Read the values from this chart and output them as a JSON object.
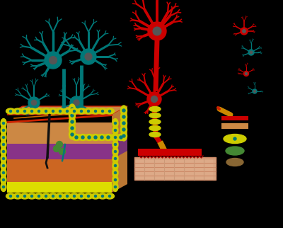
{
  "bg_color": "#000000",
  "teal": "#007878",
  "red": "#cc0000",
  "yellow": "#cccc00",
  "dark_gray": "#555555",
  "skin_epidermis": "#cc8844",
  "skin_dermis": "#bb7733",
  "skin_subdermis": "#884422",
  "skin_purple": "#883388",
  "skin_yellow": "#dddd00",
  "muscle_color": "#ddaa88",
  "muscle_line": "#cc8866"
}
